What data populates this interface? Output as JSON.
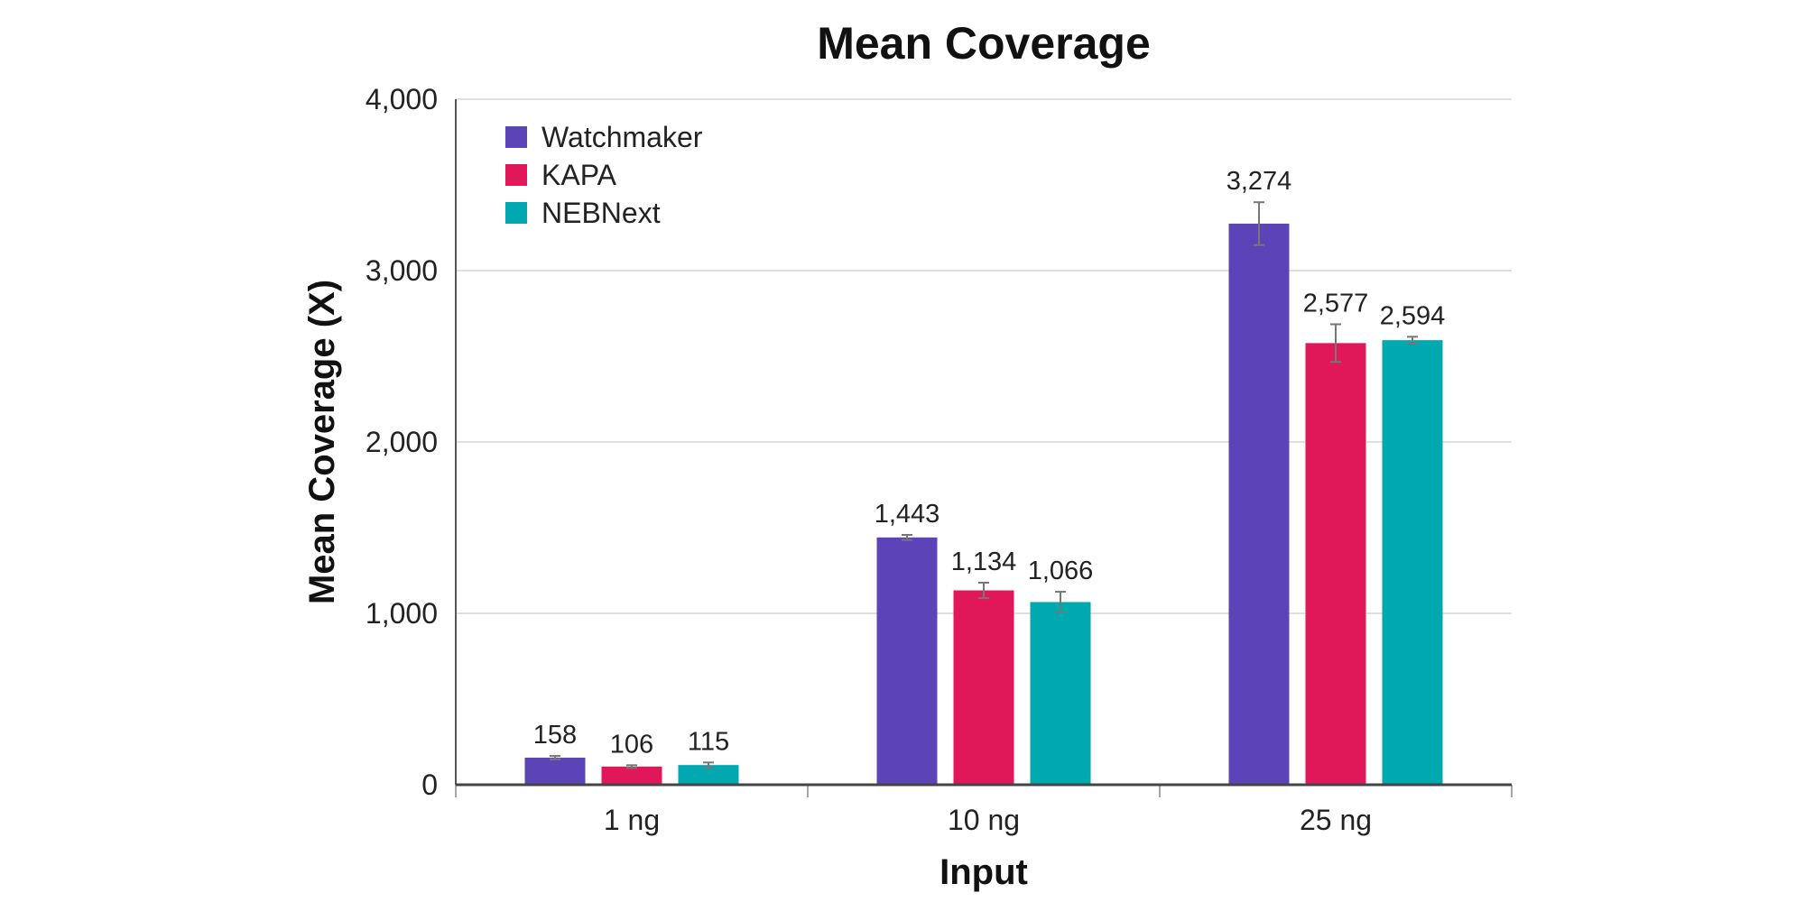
{
  "chart_data": {
    "type": "bar",
    "title": "Mean Coverage",
    "xlabel": "Input",
    "ylabel": "Mean Coverage (X)",
    "categories": [
      "1 ng",
      "10 ng",
      "25 ng"
    ],
    "ylim": [
      0,
      4000
    ],
    "yticks": [
      0,
      1000,
      2000,
      3000,
      4000
    ],
    "ytick_labels": [
      "0",
      "1,000",
      "2,000",
      "3,000",
      "4,000"
    ],
    "grid": true,
    "legend_position": "top-left",
    "series": [
      {
        "name": "Watchmaker",
        "color": "#5b43b8",
        "values": [
          158,
          1443,
          3274
        ],
        "value_labels": [
          "158",
          "1,443",
          "3,274"
        ],
        "errors": [
          10,
          15,
          125
        ]
      },
      {
        "name": "KAPA",
        "color": "#e0185a",
        "values": [
          106,
          1134,
          2577
        ],
        "value_labels": [
          "106",
          "1,134",
          "2,577"
        ],
        "errors": [
          8,
          45,
          110
        ]
      },
      {
        "name": "NEBNext",
        "color": "#00a8b0",
        "values": [
          115,
          1066,
          2594
        ],
        "value_labels": [
          "115",
          "1,066",
          "2,594"
        ],
        "errors": [
          15,
          60,
          20
        ]
      }
    ]
  }
}
